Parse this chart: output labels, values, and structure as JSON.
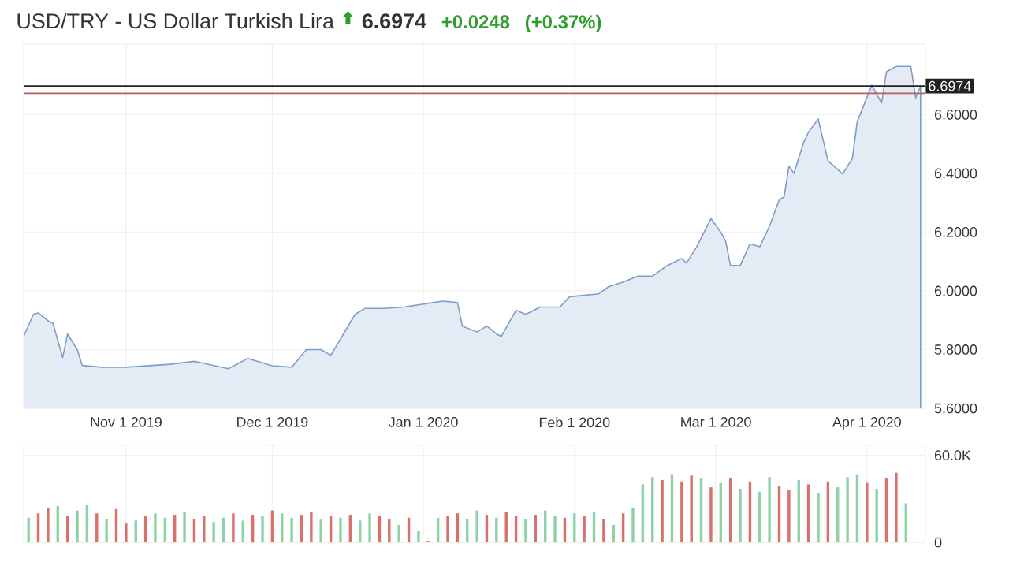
{
  "chart_data": [
    {
      "type": "area",
      "title": "USD/TRY - US Dollar Turkish Lira",
      "annotations": [
        "6.6974",
        "+0.0248",
        "(+0.37%)"
      ],
      "color": "#e4ebf4",
      "x": [
        "2019-10-11",
        "2019-10-13",
        "2019-10-14",
        "2019-10-16",
        "2019-10-17",
        "2019-10-19",
        "2019-10-20",
        "2019-10-22",
        "2019-10-23",
        "2019-10-27",
        "2019-11-01",
        "2019-11-10",
        "2019-11-15",
        "2019-11-22",
        "2019-11-26",
        "2019-12-01",
        "2019-12-05",
        "2019-12-08",
        "2019-12-11",
        "2019-12-13",
        "2019-12-18",
        "2019-12-20",
        "2019-12-24",
        "2019-12-28",
        "2020-01-03",
        "2020-01-05",
        "2020-01-08",
        "2020-01-09",
        "2020-01-12",
        "2020-01-14",
        "2020-01-16",
        "2020-01-17",
        "2020-01-20",
        "2020-01-22",
        "2020-01-25",
        "2020-01-29",
        "2020-01-31",
        "2020-02-06",
        "2020-02-08",
        "2020-02-11",
        "2020-02-14",
        "2020-02-17",
        "2020-02-20",
        "2020-02-23",
        "2020-02-24",
        "2020-02-26",
        "2020-02-29",
        "2020-03-02",
        "2020-03-03",
        "2020-03-04",
        "2020-03-06",
        "2020-03-08",
        "2020-03-10",
        "2020-03-12",
        "2020-03-14",
        "2020-03-15",
        "2020-03-16",
        "2020-03-17",
        "2020-03-19",
        "2020-03-20",
        "2020-03-22",
        "2020-03-24",
        "2020-03-27",
        "2020-03-29",
        "2020-03-30",
        "2020-04-02",
        "2020-04-04",
        "2020-04-05",
        "2020-04-07",
        "2020-04-10",
        "2020-04-11",
        "2020-04-12"
      ],
      "values": [
        5.845,
        5.92,
        5.925,
        5.898,
        5.89,
        5.773,
        5.853,
        5.8,
        5.746,
        5.74,
        5.74,
        5.75,
        5.76,
        5.735,
        5.77,
        5.745,
        5.74,
        5.8,
        5.8,
        5.78,
        5.92,
        5.94,
        5.94,
        5.945,
        5.96,
        5.965,
        5.96,
        5.88,
        5.86,
        5.88,
        5.853,
        5.845,
        5.934,
        5.92,
        5.945,
        5.945,
        5.98,
        5.99,
        6.014,
        6.03,
        6.05,
        6.05,
        6.086,
        6.11,
        6.095,
        6.148,
        6.246,
        6.2,
        6.17,
        6.086,
        6.086,
        6.16,
        6.15,
        6.22,
        6.31,
        6.32,
        6.425,
        6.4,
        6.505,
        6.54,
        6.585,
        6.443,
        6.398,
        6.45,
        6.576,
        6.7,
        6.64,
        6.746,
        6.764,
        6.764,
        6.657,
        6.697
      ],
      "xlim": [
        "2019-10-11",
        "2020-04-13"
      ],
      "ylim": [
        5.6,
        6.84
      ],
      "xticks": [
        {
          "value": "2019-11-01",
          "label": "Nov 1 2019"
        },
        {
          "value": "2019-12-01",
          "label": "Dec 1 2019"
        },
        {
          "value": "2020-01-01",
          "label": "Jan 1 2020"
        },
        {
          "value": "2020-02-01",
          "label": "Feb 1 2020"
        },
        {
          "value": "2020-03-01",
          "label": "Mar 1 2020"
        },
        {
          "value": "2020-04-01",
          "label": "Apr 1 2020"
        }
      ],
      "yticks": [
        {
          "value": 5.6,
          "label": "5.6000"
        },
        {
          "value": 5.8,
          "label": "5.8000"
        },
        {
          "value": 6.0,
          "label": "6.0000"
        },
        {
          "value": 6.2,
          "label": "6.2000"
        },
        {
          "value": 6.4,
          "label": "6.4000"
        },
        {
          "value": 6.6,
          "label": "6.6000"
        }
      ],
      "grid": true,
      "ref_lines": [
        {
          "axis": "y",
          "value": 6.6974,
          "label": "6.6974",
          "color": "#222222"
        },
        {
          "axis": "y",
          "value": 6.6726,
          "color": "#b5605a"
        }
      ]
    },
    {
      "type": "bar",
      "tick_labels": "y",
      "grid": true,
      "x": [
        "2019-10-12",
        "2019-10-14",
        "2019-10-16",
        "2019-10-18",
        "2019-10-20",
        "2019-10-22",
        "2019-10-24",
        "2019-10-26",
        "2019-10-28",
        "2019-10-30",
        "2019-11-01",
        "2019-11-03",
        "2019-11-05",
        "2019-11-07",
        "2019-11-09",
        "2019-11-11",
        "2019-11-13",
        "2019-11-15",
        "2019-11-17",
        "2019-11-19",
        "2019-11-21",
        "2019-11-23",
        "2019-11-25",
        "2019-11-27",
        "2019-11-29",
        "2019-12-01",
        "2019-12-03",
        "2019-12-05",
        "2019-12-07",
        "2019-12-09",
        "2019-12-11",
        "2019-12-13",
        "2019-12-15",
        "2019-12-17",
        "2019-12-19",
        "2019-12-21",
        "2019-12-23",
        "2019-12-25",
        "2019-12-27",
        "2019-12-29",
        "2019-12-31",
        "2020-01-02",
        "2020-01-04",
        "2020-01-06",
        "2020-01-08",
        "2020-01-10",
        "2020-01-12",
        "2020-01-14",
        "2020-01-16",
        "2020-01-18",
        "2020-01-20",
        "2020-01-22",
        "2020-01-24",
        "2020-01-26",
        "2020-01-28",
        "2020-01-30",
        "2020-02-01",
        "2020-02-03",
        "2020-02-05",
        "2020-02-07",
        "2020-02-09",
        "2020-02-11",
        "2020-02-13",
        "2020-02-15",
        "2020-02-17",
        "2020-02-19",
        "2020-02-21",
        "2020-02-23",
        "2020-02-25",
        "2020-02-27",
        "2020-02-29",
        "2020-03-02",
        "2020-03-04",
        "2020-03-06",
        "2020-03-08",
        "2020-03-10",
        "2020-03-12",
        "2020-03-14",
        "2020-03-16",
        "2020-03-18",
        "2020-03-20",
        "2020-03-22",
        "2020-03-24",
        "2020-03-26",
        "2020-03-28",
        "2020-03-30",
        "2020-04-01",
        "2020-04-03",
        "2020-04-05",
        "2020-04-07",
        "2020-04-09"
      ],
      "values": [
        17000,
        20000,
        24000,
        25000,
        18000,
        22000,
        26000,
        20000,
        16000,
        23000,
        13000,
        15000,
        18000,
        20000,
        17000,
        19000,
        21000,
        16000,
        18000,
        14000,
        17000,
        20000,
        15000,
        19000,
        18000,
        22000,
        20000,
        17000,
        19000,
        21000,
        16000,
        18000,
        17000,
        19000,
        15000,
        20000,
        18000,
        16000,
        12000,
        17000,
        8000,
        1000,
        17000,
        18000,
        20000,
        16000,
        22000,
        19000,
        17000,
        21000,
        18000,
        16000,
        19000,
        22000,
        18000,
        17000,
        20000,
        18000,
        21000,
        16000,
        12000,
        20000,
        24000,
        40000,
        45000,
        43000,
        47000,
        42000,
        46000,
        44000,
        38000,
        41000,
        44000,
        37000,
        42000,
        35000,
        45000,
        39000,
        36000,
        43000,
        40000,
        34000,
        42000,
        38000,
        45000,
        47000,
        41000,
        37000,
        44000,
        48000,
        27000
      ],
      "colors": [
        "#8fd1a5",
        "#d9706a",
        "#d9706a",
        "#8fd1a5",
        "#d9706a",
        "#8fd1a5",
        "#8fd1a5",
        "#d9706a",
        "#8fd1a5",
        "#d9706a",
        "#d9706a",
        "#8fd1a5",
        "#d9706a",
        "#8fd1a5",
        "#8fd1a5",
        "#d9706a",
        "#8fd1a5",
        "#d9706a",
        "#d9706a",
        "#8fd1a5",
        "#8fd1a5",
        "#d9706a",
        "#8fd1a5",
        "#d9706a",
        "#8fd1a5",
        "#d9706a",
        "#8fd1a5",
        "#8fd1a5",
        "#d9706a",
        "#d9706a",
        "#8fd1a5",
        "#d9706a",
        "#8fd1a5",
        "#d9706a",
        "#8fd1a5",
        "#8fd1a5",
        "#d9706a",
        "#d9706a",
        "#8fd1a5",
        "#d9706a",
        "#8fd1a5",
        "#d9706a",
        "#8fd1a5",
        "#d9706a",
        "#d9706a",
        "#8fd1a5",
        "#8fd1a5",
        "#d9706a",
        "#8fd1a5",
        "#d9706a",
        "#d9706a",
        "#8fd1a5",
        "#d9706a",
        "#8fd1a5",
        "#8fd1a5",
        "#d9706a",
        "#8fd1a5",
        "#d9706a",
        "#8fd1a5",
        "#d9706a",
        "#8fd1a5",
        "#d9706a",
        "#8fd1a5",
        "#8fd1a5",
        "#8fd1a5",
        "#d9706a",
        "#8fd1a5",
        "#d9706a",
        "#d9706a",
        "#8fd1a5",
        "#d9706a",
        "#8fd1a5",
        "#d9706a",
        "#8fd1a5",
        "#d9706a",
        "#8fd1a5",
        "#8fd1a5",
        "#d9706a",
        "#d9706a",
        "#8fd1a5",
        "#d9706a",
        "#8fd1a5",
        "#d9706a",
        "#8fd1a5",
        "#8fd1a5",
        "#8fd1a5",
        "#d9706a",
        "#8fd1a5",
        "#d9706a",
        "#d9706a",
        "#8fd1a5"
      ],
      "xlim": [
        "2019-10-11",
        "2020-04-13"
      ],
      "ylim": [
        0,
        67000
      ],
      "xticks": [
        {
          "value": "2019-11-01",
          "label": null
        },
        {
          "value": "2019-12-01",
          "label": null
        },
        {
          "value": "2020-01-01",
          "label": null
        },
        {
          "value": "2020-02-01",
          "label": null
        },
        {
          "value": "2020-03-01",
          "label": null
        },
        {
          "value": "2020-04-01",
          "label": null
        }
      ],
      "yticks": [
        {
          "value": 0,
          "label": "0"
        },
        {
          "value": 60000,
          "label": "60.0K"
        }
      ]
    }
  ]
}
